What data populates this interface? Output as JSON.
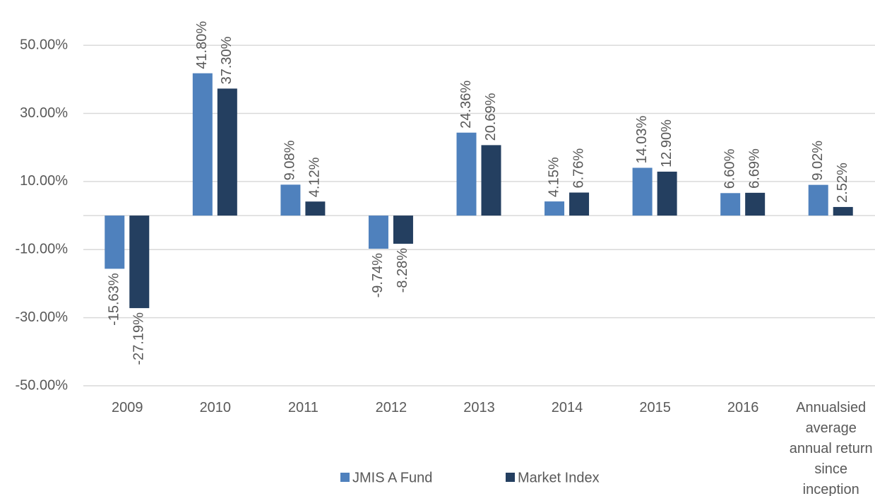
{
  "chart_data": {
    "type": "bar",
    "categories": [
      "2009",
      "2010",
      "2011",
      "2012",
      "2013",
      "2014",
      "2015",
      "2016",
      "Annualsied average annual return since inception"
    ],
    "series": [
      {
        "name": "JMIS A Fund",
        "color": "#4f81bd",
        "values": [
          -15.63,
          41.8,
          9.08,
          -9.74,
          24.36,
          4.15,
          14.03,
          6.6,
          9.02
        ],
        "value_labels": [
          "-15.63%",
          "41.80%",
          "9.08%",
          "-9.74%",
          "24.36%",
          "4.15%",
          "14.03%",
          "6.60%",
          "9.02%"
        ]
      },
      {
        "name": "Market Index",
        "color": "#243f60",
        "values": [
          -27.19,
          37.3,
          4.12,
          -8.28,
          20.69,
          6.76,
          12.9,
          6.69,
          2.52
        ],
        "value_labels": [
          "-27.19%",
          "37.30%",
          "4.12%",
          "-8.28%",
          "20.69%",
          "6.76%",
          "12.90%",
          "6.69%",
          "2.52%"
        ]
      }
    ],
    "ylim": [
      -50,
      60
    ],
    "yticks": [
      {
        "value": -50,
        "label": "-50.00%"
      },
      {
        "value": -30,
        "label": "-30.00%"
      },
      {
        "value": -10,
        "label": "-10.00%"
      },
      {
        "value": 10,
        "label": "10.00%"
      },
      {
        "value": 30,
        "label": "30.00%"
      },
      {
        "value": 50,
        "label": "50.00%"
      }
    ],
    "grid": true,
    "legend": "bottom"
  }
}
